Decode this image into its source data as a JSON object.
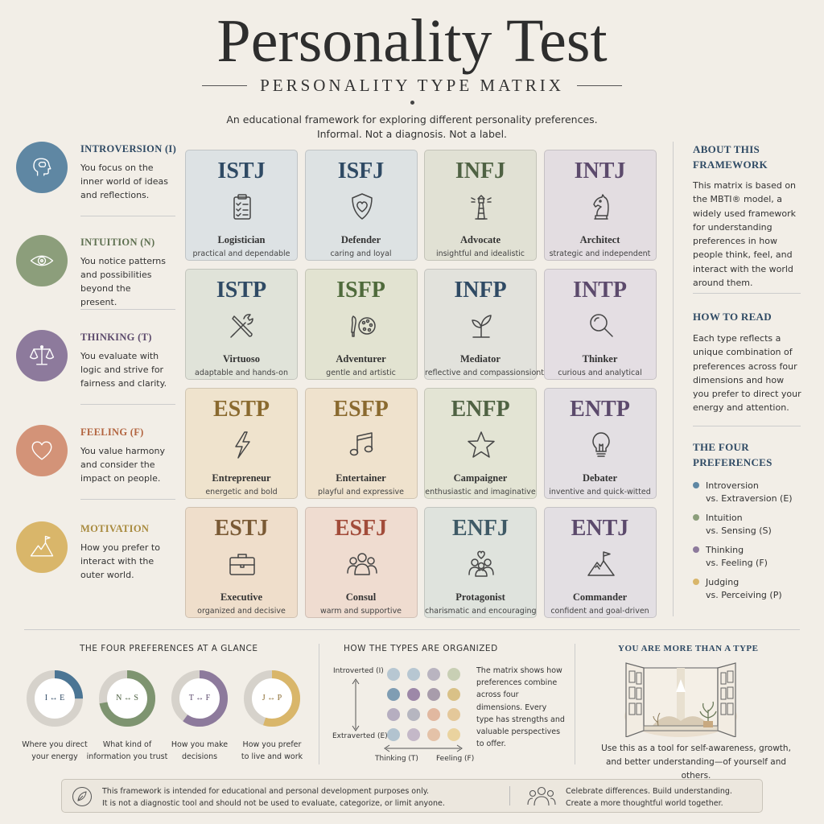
{
  "header": {
    "title": "Personality Test",
    "subtitle": "PERSONALITY TYPE MATRIX",
    "intro_line1": "An educational framework for exploring different personality preferences.",
    "intro_line2": "Informal. Not a diagnosis. Not a label."
  },
  "left_prefs": [
    {
      "title": "INTROVERSION (I)",
      "desc": "You focus on the inner world of ideas and reflections.",
      "color": "#5f87a3",
      "title_color": "#2f4a64",
      "icon": "head-icon"
    },
    {
      "title": "INTUITION (N)",
      "desc": "You notice patterns and possibilities beyond the present.",
      "color": "#8c9e7b",
      "title_color": "#5e7050",
      "icon": "eye-icon"
    },
    {
      "title": "THINKING (T)",
      "desc": "You evaluate with logic and strive for fairness and clarity.",
      "color": "#8d7a9c",
      "title_color": "#5c4a6c",
      "icon": "scales-icon"
    },
    {
      "title": "FEELING (F)",
      "desc": "You value harmony and consider the impact on people.",
      "color": "#d39378",
      "title_color": "#b2643f",
      "icon": "heart-icon"
    },
    {
      "title": "MOTIVATION",
      "desc": "How you prefer to interact with the outer world.",
      "color": "#d9b66a",
      "title_color": "#a88a3e",
      "icon": "mountain-flag-icon"
    }
  ],
  "grid": [
    {
      "code": "ISTJ",
      "name": "Logistician",
      "desc": "practical and dependable",
      "bg": "#dde2e4",
      "code_color": "#2f4a64",
      "icon": "clipboard-icon"
    },
    {
      "code": "ISFJ",
      "name": "Defender",
      "desc": "caring and loyal",
      "bg": "#dde2e3",
      "code_color": "#2f4a64",
      "icon": "shield-heart-icon"
    },
    {
      "code": "INFJ",
      "name": "Advocate",
      "desc": "insightful and idealistic",
      "bg": "#e1e1d4",
      "code_color": "#4f6243",
      "icon": "lighthouse-icon"
    },
    {
      "code": "INTJ",
      "name": "Architect",
      "desc": "strategic and independent",
      "bg": "#e3dde1",
      "code_color": "#5c4a6c",
      "icon": "chess-knight-icon"
    },
    {
      "code": "ISTP",
      "name": "Virtuoso",
      "desc": "adaptable and hands-on",
      "bg": "#e0e3d9",
      "code_color": "#2f4a64",
      "icon": "tools-icon"
    },
    {
      "code": "ISFP",
      "name": "Adventurer",
      "desc": "gentle and artistic",
      "bg": "#e2e3d1",
      "code_color": "#4f6a3b",
      "icon": "palette-icon"
    },
    {
      "code": "INFP",
      "name": "Mediator",
      "desc": "reflective and compassionsionte",
      "bg": "#e2e2dc",
      "code_color": "#2f4a64",
      "icon": "sprout-icon"
    },
    {
      "code": "INTP",
      "name": "Thinker",
      "desc": "curious and analytical",
      "bg": "#e4dee3",
      "code_color": "#5c4a6c",
      "icon": "magnifier-icon"
    },
    {
      "code": "ESTP",
      "name": "Entrepreneur",
      "desc": "energetic and bold",
      "bg": "#efe3cd",
      "code_color": "#8a6a2f",
      "icon": "lightning-icon"
    },
    {
      "code": "ESFP",
      "name": "Entertainer",
      "desc": "playful and expressive",
      "bg": "#efe2cd",
      "code_color": "#8a6a2f",
      "icon": "music-note-icon"
    },
    {
      "code": "ENFP",
      "name": "Campaigner",
      "desc": "enthusiastic and imaginative",
      "bg": "#e3e4d4",
      "code_color": "#4f6243",
      "icon": "star-icon"
    },
    {
      "code": "ENTP",
      "name": "Debater",
      "desc": "inventive and quick-witted",
      "bg": "#e3dfe3",
      "code_color": "#5c4a6c",
      "icon": "lightbulb-icon"
    },
    {
      "code": "ESTJ",
      "name": "Executive",
      "desc": "organized and decisive",
      "bg": "#efdecb",
      "code_color": "#7a5a35",
      "icon": "briefcase-icon"
    },
    {
      "code": "ESFJ",
      "name": "Consul",
      "desc": "warm and supportive",
      "bg": "#efdcd0",
      "code_color": "#a24c3a",
      "icon": "people-icon"
    },
    {
      "code": "ENFJ",
      "name": "Protagonist",
      "desc": "charismatic and encouraging",
      "bg": "#dfe3dd",
      "code_color": "#3f5a66",
      "icon": "group-heart-icon"
    },
    {
      "code": "ENTJ",
      "name": "Commander",
      "desc": "confident and goal-driven",
      "bg": "#e3dfe3",
      "code_color": "#5c4a6c",
      "icon": "summit-flag-icon"
    }
  ],
  "right": {
    "about_title_1": "ABOUT THIS",
    "about_title_2": "FRAMEWORK",
    "about_text": "This matrix is based on the MBTI® model, a widely used framework for understanding preferences in how people think, feel, and interact with the world around them.",
    "howto_title": "HOW TO READ",
    "howto_text": "Each type reflects a unique combination of preferences across four dimensions and how you prefer to direct your energy and attention.",
    "four_title_1": "THE FOUR",
    "four_title_2": "PREFERENCES",
    "four": [
      {
        "a": "Introversion",
        "b": "vs. Extraversion (E)",
        "color": "#5f87a3"
      },
      {
        "a": "Intuition",
        "b": "vs. Sensing (S)",
        "color": "#8c9e7b"
      },
      {
        "a": "Thinking",
        "b": "vs. Feeling (F)",
        "color": "#8d7a9c"
      },
      {
        "a": "Judging",
        "b": "vs. Perceiving (P)",
        "color": "#d9b66a"
      }
    ]
  },
  "glance": {
    "title": "THE FOUR PREFERENCES AT A GLANCE",
    "donuts": [
      {
        "label": "I ↔ E",
        "cap1": "Where you direct",
        "cap2": "your energy",
        "color": "#4b7594",
        "fraction": 0.25,
        "label_color": "#2f4a64"
      },
      {
        "label": "N ↔ S",
        "cap1": "What kind of",
        "cap2": "information you trust",
        "color": "#7e9470",
        "fraction": 0.72,
        "label_color": "#4f6243"
      },
      {
        "label": "T ↔ F",
        "cap1": "How you make",
        "cap2": "decisions",
        "color": "#8d7a9c",
        "fraction": 0.6,
        "label_color": "#5c4a6c"
      },
      {
        "label": "J ↔ P",
        "cap1": "How you prefer",
        "cap2": "to live and work",
        "color": "#d9b66a",
        "fraction": 0.55,
        "label_color": "#8a6a2f"
      }
    ]
  },
  "organized": {
    "title": "HOW THE TYPES ARE ORGANIZED",
    "y_top": "Introverted (I)",
    "y_bottom": "Extraverted (E)",
    "x_left": "Thinking (T)",
    "x_right": "Feeling (F)",
    "text": "The matrix shows how preferences combine across four dimensions. Every type has strengths and valuable perspectives to offer.",
    "dot_colors": [
      "#b7c7d2",
      "#b7c7d2",
      "#b9b4c0",
      "#c8cfb4",
      "#7f9db3",
      "#9d88a8",
      "#a89cab",
      "#d9c187",
      "#b6aec0",
      "#b6b6c0",
      "#e1b8a0",
      "#e4c89a",
      "#b2c3cf",
      "#c4b8c8",
      "#e4c2a8",
      "#ead39f"
    ]
  },
  "more": {
    "title": "YOU ARE MORE THAN A TYPE",
    "cap1": "Use this as a tool for self-awareness, growth,",
    "cap2": "and better understanding—of yourself and others."
  },
  "footer": {
    "left1": "This framework is intended for educational and personal development purposes only.",
    "left2": "It is not a diagnostic tool and should not be used to evaluate, categorize, or limit anyone.",
    "right1": "Celebrate differences. Build understanding.",
    "right2": "Create a more thoughtful world together."
  }
}
